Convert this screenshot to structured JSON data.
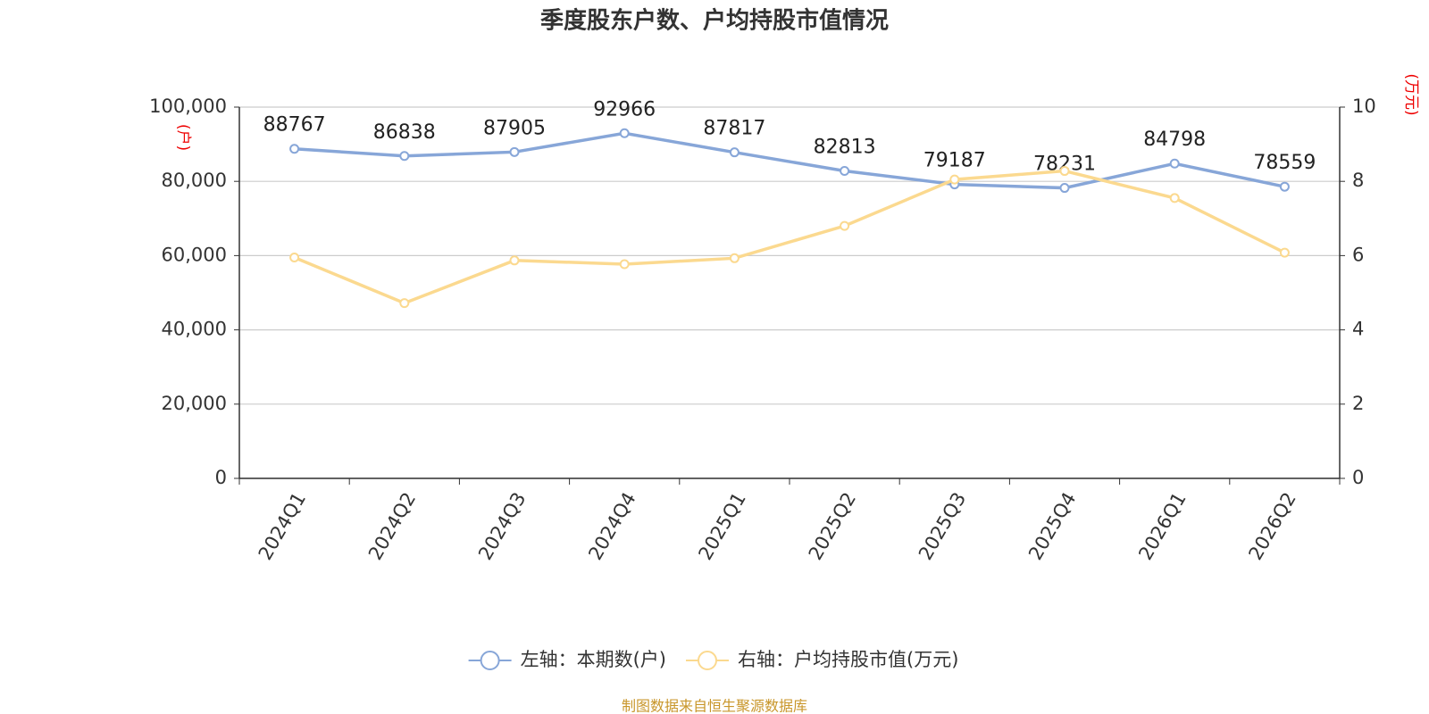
{
  "chart_data": {
    "type": "line",
    "title": "季度股东户数、户均持股市值情况",
    "categories": [
      "2024Q1",
      "2024Q2",
      "2024Q3",
      "2024Q4",
      "2025Q1",
      "2025Q2",
      "2025Q3",
      "2025Q4",
      "2026Q1",
      "2026Q2"
    ],
    "series": [
      {
        "name": "左轴：本期数(户)",
        "color": "#87a6d8",
        "values": [
          88767,
          86838,
          87905,
          92966,
          87817,
          82813,
          79187,
          78231,
          84798,
          78559
        ],
        "show_labels": true
      },
      {
        "name": "右轴：户均持股市值(万元)",
        "color": "#fbd98f",
        "values": [
          5.95,
          4.72,
          5.87,
          5.77,
          5.93,
          6.8,
          8.05,
          8.28,
          7.55,
          6.08
        ],
        "axis": "y2",
        "show_labels": false
      }
    ],
    "ylim": [
      0,
      100000
    ],
    "yticks": [
      0,
      {
        "value": 20000,
        "label": "20,000"
      },
      {
        "value": 40000,
        "label": "40,000"
      },
      {
        "value": 60000,
        "label": "60,000"
      },
      {
        "value": 80000,
        "label": "80,000"
      },
      {
        "value": 100000,
        "label": "100,000"
      }
    ],
    "y2lim": [
      0,
      10
    ],
    "y2ticks": [
      0,
      2,
      4,
      6,
      8,
      10
    ],
    "y_label": "(户)",
    "y2_label": "(万元)",
    "grid": true,
    "source": "制图数据来自恒生聚源数据库"
  }
}
